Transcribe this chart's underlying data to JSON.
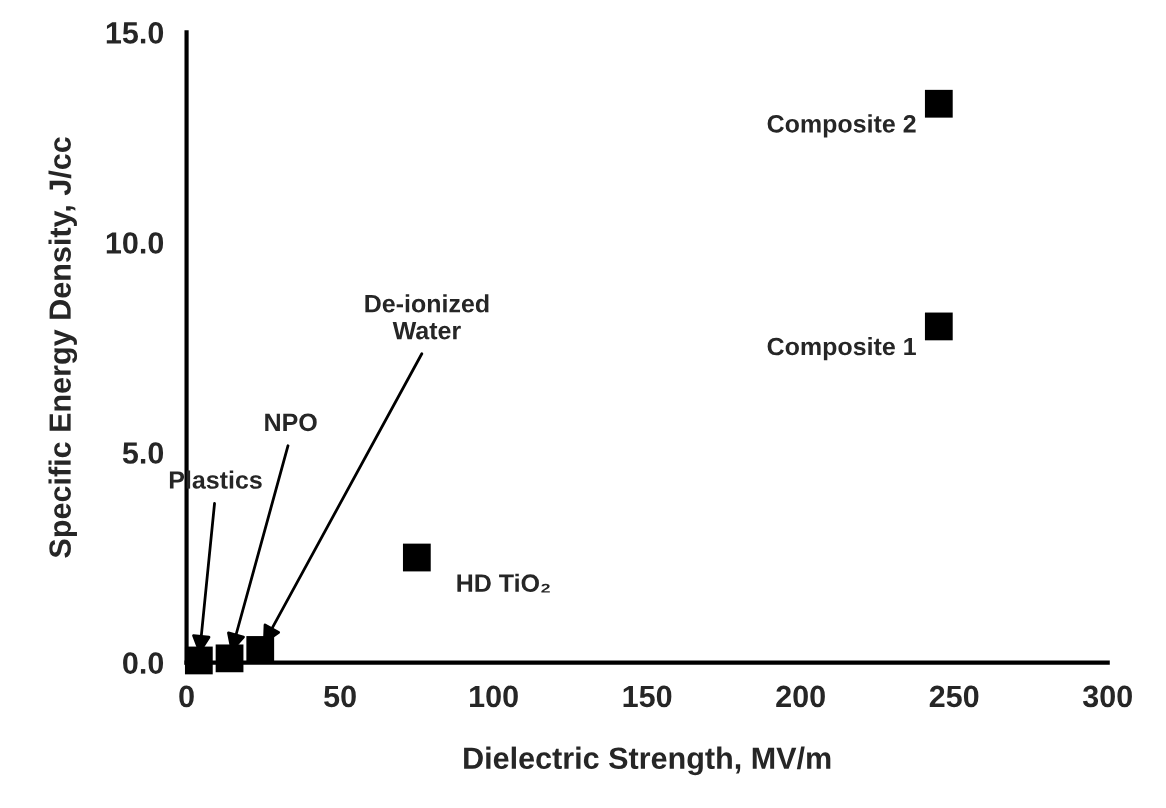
{
  "chart_data": {
    "type": "scatter",
    "xlabel": "Dielectric Strength, MV/m",
    "ylabel": "Specific Energy Density, J/cc",
    "x": [
      4,
      14,
      24,
      75,
      245,
      245
    ],
    "values": [
      0.05,
      0.1,
      0.3,
      2.5,
      8.0,
      13.3
    ],
    "color": "#000000",
    "marker": "square",
    "grid": false,
    "xlim": [
      0,
      300
    ],
    "xticks": [
      0,
      50,
      100,
      150,
      200,
      250,
      300
    ],
    "ylim": [
      0,
      15
    ],
    "yticks": [
      {
        "value": 0,
        "label": "0.0"
      },
      {
        "value": 5,
        "label": "5.0"
      },
      {
        "value": 10,
        "label": "10.0"
      },
      {
        "value": 15,
        "label": "15.0"
      }
    ],
    "annotations": [
      {
        "text": "Plastics",
        "x": 4,
        "y": 0.05
      },
      {
        "text": "NPO",
        "x": 14,
        "y": 0.1
      },
      {
        "text": "De-ionized\nWater",
        "x": 24,
        "y": 0.3
      },
      {
        "text": "HD TiO₂",
        "x": 75,
        "y": 2.5
      },
      {
        "text": "Composite 1",
        "x": 245,
        "y": 8.0
      },
      {
        "text": "Composite 2",
        "x": 245,
        "y": 13.3
      }
    ]
  }
}
